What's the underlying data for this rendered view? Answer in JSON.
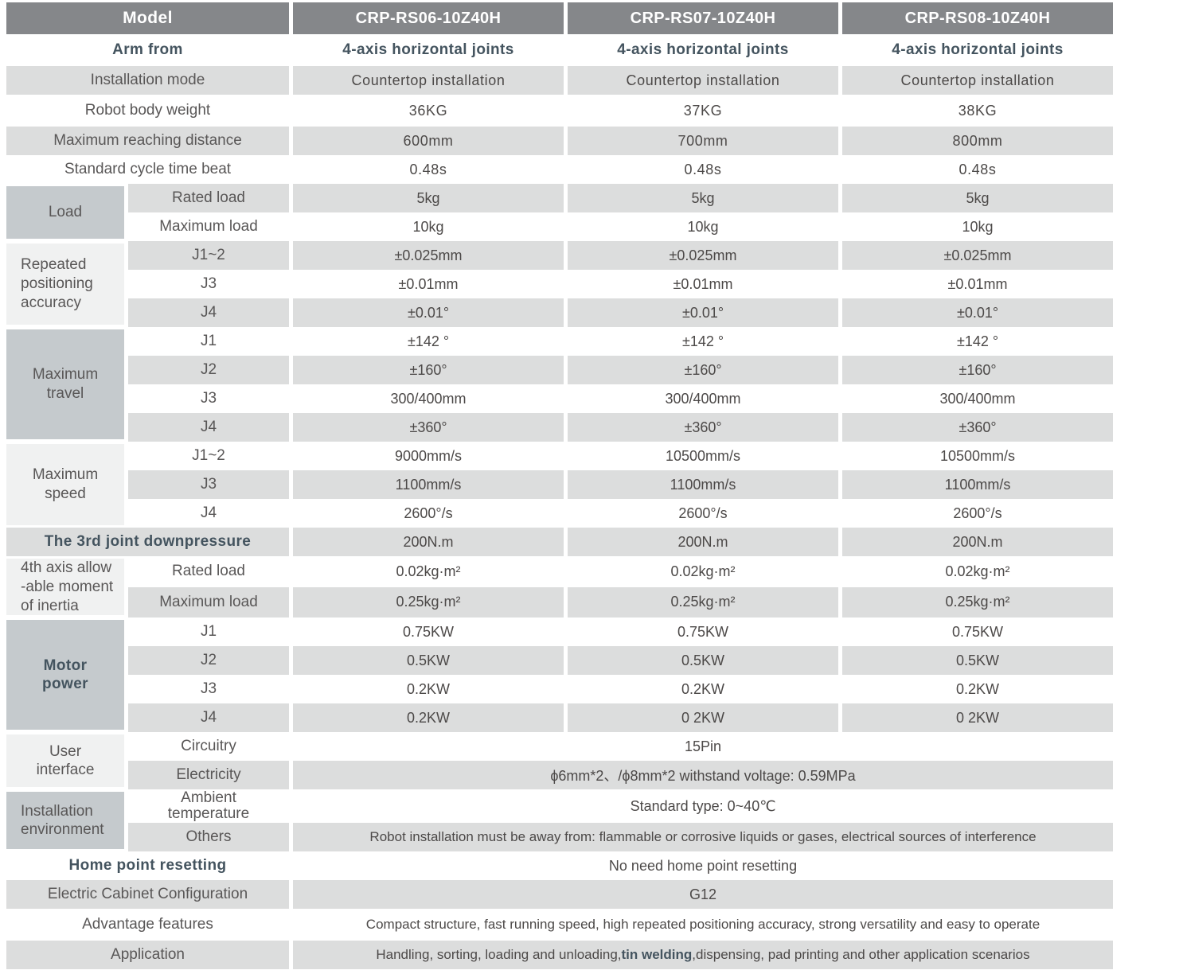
{
  "header": {
    "model": "Model",
    "models": [
      "CRP-RS06-10Z40H",
      "CRP-RS07-10Z40H",
      "CRP-RS08-10Z40H"
    ]
  },
  "groups": {
    "load": {
      "lines": [
        "Load"
      ]
    },
    "accuracy": {
      "lines": [
        "Repeated",
        "positioning",
        "accuracy"
      ]
    },
    "travel": {
      "lines": [
        "Maximum",
        "travel"
      ]
    },
    "speed": {
      "lines": [
        "Maximum",
        "speed"
      ]
    },
    "inertia": {
      "lines": [
        "4th axis allow",
        "-able moment",
        "of inertia"
      ]
    },
    "motor": {
      "lines": [
        "Motor",
        "power"
      ]
    },
    "user_interface": {
      "lines": [
        "User",
        "interface"
      ]
    },
    "environment": {
      "lines": [
        "Installation",
        "environment"
      ]
    }
  },
  "rows": {
    "arm_from": {
      "label": "Arm from",
      "values": [
        "4-axis horizontal joints",
        "4-axis horizontal joints",
        "4-axis horizontal joints"
      ]
    },
    "installation_mode": {
      "label": "Installation mode",
      "values": [
        "Countertop installation",
        "Countertop installation",
        "Countertop installation"
      ]
    },
    "body_weight": {
      "label": "Robot body weight",
      "values": [
        "36KG",
        "37KG",
        "38KG"
      ]
    },
    "reach": {
      "label": "Maximum reaching distance",
      "values": [
        "600mm",
        "700mm",
        "800mm"
      ]
    },
    "cycle": {
      "label": "Standard cycle time beat",
      "values": [
        "0.48s",
        "0.48s",
        "0.48s"
      ]
    },
    "load_rated": {
      "sub": "Rated load",
      "values": [
        "5kg",
        "5kg",
        "5kg"
      ]
    },
    "load_max": {
      "sub": "Maximum load",
      "values": [
        "10kg",
        "10kg",
        "10kg"
      ]
    },
    "acc_j12": {
      "sub": "J1~2",
      "values": [
        "±0.025mm",
        "±0.025mm",
        "±0.025mm"
      ]
    },
    "acc_j3": {
      "sub": "J3",
      "values": [
        "±0.01mm",
        "±0.01mm",
        "±0.01mm"
      ]
    },
    "acc_j4": {
      "sub": "J4",
      "values": [
        "±0.01°",
        "±0.01°",
        "±0.01°"
      ]
    },
    "travel_j1": {
      "sub": "J1",
      "values": [
        "±142 °",
        "±142 °",
        "±142 °"
      ]
    },
    "travel_j2": {
      "sub": "J2",
      "values": [
        "±160°",
        "±160°",
        "±160°"
      ]
    },
    "travel_j3": {
      "sub": "J3",
      "values": [
        "300/400mm",
        "300/400mm",
        "300/400mm"
      ]
    },
    "travel_j4": {
      "sub": "J4",
      "values": [
        "±360°",
        "±360°",
        "±360°"
      ]
    },
    "speed_j12": {
      "sub": "J1~2",
      "values": [
        "9000mm/s",
        "10500mm/s",
        "10500mm/s"
      ]
    },
    "speed_j3": {
      "sub": "J3",
      "values": [
        "1100mm/s",
        "1100mm/s",
        "1100mm/s"
      ]
    },
    "speed_j4": {
      "sub": "J4",
      "values": [
        "2600°/s",
        "2600°/s",
        "2600°/s"
      ]
    },
    "downpressure": {
      "label": "The 3rd joint downpressure",
      "values": [
        "200N.m",
        "200N.m",
        "200N.m"
      ]
    },
    "inertia_rated": {
      "sub": "Rated load",
      "values": [
        "0.02kg·m²",
        "0.02kg·m²",
        "0.02kg·m²"
      ]
    },
    "inertia_max": {
      "sub": "Maximum load",
      "values": [
        "0.25kg·m²",
        "0.25kg·m²",
        "0.25kg·m²"
      ]
    },
    "motor_j1": {
      "sub": "J1",
      "values": [
        "0.75KW",
        "0.75KW",
        "0.75KW"
      ]
    },
    "motor_j2": {
      "sub": "J2",
      "values": [
        "0.5KW",
        "0.5KW",
        "0.5KW"
      ]
    },
    "motor_j3": {
      "sub": "J3",
      "values": [
        "0.2KW",
        "0.2KW",
        "0.2KW"
      ]
    },
    "motor_j4": {
      "sub": "J4",
      "values": [
        "0.2KW",
        "0 2KW",
        "0 2KW"
      ]
    },
    "circuitry": {
      "sub": "Circuitry",
      "value": "15Pin"
    },
    "electricity": {
      "sub": "Electricity",
      "value": "ϕ6mm*2、/ϕ8mm*2  withstand voltage: 0.59MPa"
    },
    "ambient": {
      "sub_lines": [
        "Ambient",
        "temperature"
      ],
      "value": "Standard type:   0~40℃"
    },
    "others": {
      "sub": "Others",
      "value": "Robot installation must be away from: flammable or corrosive liquids or gases, electrical sources of interference"
    },
    "home": {
      "label": "Home point resetting",
      "value": "No need home point resetting"
    },
    "cabinet": {
      "label": "Electric Cabinet Configuration",
      "value": "G12"
    },
    "advantage": {
      "label": "Advantage features",
      "value": "Compact structure, fast running speed, high repeated positioning accuracy, strong versatility and easy to operate"
    },
    "application": {
      "label": "Application",
      "value_prefix": "Handling, sorting, loading and unloading,",
      "value_bold": "tin welding",
      "value_suffix": ",dispensing, pad printing and other application scenarios"
    }
  },
  "colors": {
    "header_bg": "#85878a",
    "stripe_bg": "#dcdddd",
    "group_dark_bg": "#c5cacd",
    "group_light_bg": "#f0f1f1",
    "header_text": "#ffffff",
    "bold_text": "#44545f",
    "label_text": "#595757",
    "value_text": "#4c4948"
  }
}
